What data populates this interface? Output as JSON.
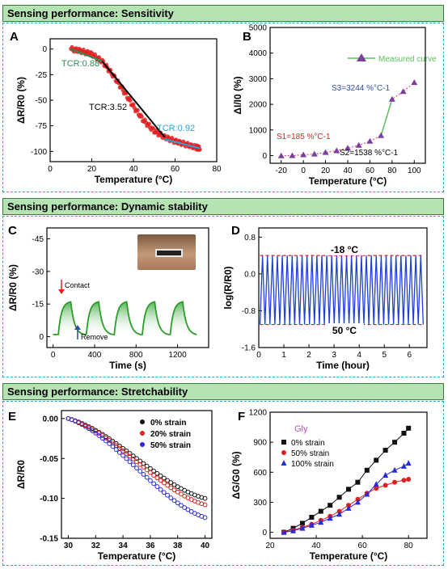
{
  "sections": [
    {
      "title": "Sensing performance: Sensitivity"
    },
    {
      "title": "Sensing performance: Dynamic stability"
    },
    {
      "title": "Sensing performance: Stretchability"
    }
  ],
  "colors": {
    "header_fill": "#b5e3b3",
    "header_border": "#3d7a3d",
    "section_border": "#2aa3d8"
  },
  "chart_data": [
    {
      "panel": "A",
      "type": "scatter",
      "xlabel": "Temperature (°C)",
      "ylabel": "ΔR/R0 (%)",
      "xlim": [
        0,
        80
      ],
      "ylim": [
        -110,
        10
      ],
      "xticks": [
        0,
        20,
        40,
        60,
        80
      ],
      "yticks": [
        0,
        -25,
        -50,
        -75,
        -100
      ],
      "series": [
        {
          "color": "#e02020",
          "points": [
            [
              10,
              0
            ],
            [
              15,
              -2
            ],
            [
              20,
              -5
            ],
            [
              25,
              -12
            ],
            [
              30,
              -25
            ],
            [
              35,
              -40
            ],
            [
              40,
              -56
            ],
            [
              45,
              -70
            ],
            [
              50,
              -80
            ],
            [
              55,
              -86
            ],
            [
              60,
              -90
            ],
            [
              65,
              -93
            ],
            [
              70,
              -96
            ],
            [
              72,
              -97
            ]
          ]
        }
      ],
      "annotations": [
        {
          "text": "TCR:0.88",
          "color": "#2e8b57"
        },
        {
          "text": "TCR:3.52",
          "color": "#000000"
        },
        {
          "text": "TCR:0.92",
          "color": "#2aa3d8"
        }
      ]
    },
    {
      "panel": "B",
      "type": "line",
      "xlabel": "Temperature (°C)",
      "ylabel": "ΔI/I0 (%)",
      "xlim": [
        -30,
        110
      ],
      "ylim": [
        -300,
        5000
      ],
      "xticks": [
        -20,
        0,
        20,
        40,
        60,
        80,
        100
      ],
      "yticks": [
        0,
        1000,
        2000,
        3000,
        4000,
        5000
      ],
      "series": [
        {
          "name": "Measured curve",
          "color": "#7a3e9e",
          "x": [
            -20,
            -10,
            0,
            10,
            20,
            30,
            40,
            50,
            60,
            70,
            80,
            90,
            100
          ],
          "y": [
            -10,
            0,
            30,
            60,
            120,
            190,
            290,
            400,
            560,
            780,
            2200,
            2500,
            2850
          ]
        }
      ],
      "annotations": [
        {
          "text": "S1=185 %°C-1",
          "color": "#e02020"
        },
        {
          "text": "S2=1538 %°C-1",
          "color": "#000000"
        },
        {
          "text": "S3=3244 %°C-1",
          "color": "#2e4fa8"
        }
      ]
    },
    {
      "panel": "C",
      "type": "line",
      "xlabel": "Time (s)",
      "ylabel": "ΔR/R0 (%)",
      "xlim": [
        -60,
        1500
      ],
      "ylim": [
        5,
        -50
      ],
      "xticks": [
        0,
        400,
        800,
        1200
      ],
      "yticks": [
        -45,
        -30,
        -15,
        0
      ],
      "cycles": [
        {
          "start": 50,
          "peak": -16
        },
        {
          "start": 320,
          "peak": -16
        },
        {
          "start": 590,
          "peak": -16
        },
        {
          "start": 860,
          "peak": -16
        },
        {
          "start": 1130,
          "peak": -16
        }
      ],
      "series": [
        {
          "color": "#2a9d2a"
        }
      ],
      "annotations": [
        {
          "text": "Contact",
          "color": "#e02020"
        },
        {
          "text": "Remove",
          "color": "#2e4fa8"
        }
      ]
    },
    {
      "panel": "D",
      "type": "line",
      "xlabel": "Time (hour)",
      "ylabel": "log(R/R0)",
      "xlim": [
        0,
        6.7
      ],
      "ylim": [
        -1.6,
        1.0
      ],
      "xticks": [
        0,
        1,
        2,
        3,
        4,
        5,
        6
      ],
      "yticks": [
        0.8,
        0.0,
        -0.8,
        -1.6
      ],
      "series": [
        {
          "color": "#1f3fd8",
          "high": 0.4,
          "low": -1.1,
          "cycles": 33
        },
        {
          "color": "#e02020",
          "high": 0.4,
          "low": -1.1
        }
      ],
      "annotations": [
        {
          "text": "-18 °C"
        },
        {
          "text": "50 °C"
        }
      ]
    },
    {
      "panel": "E",
      "type": "scatter",
      "xlabel": "Temperature (°C)",
      "ylabel": "ΔR/R0",
      "xlim": [
        29.5,
        40.5
      ],
      "ylim": [
        -0.15,
        0.01
      ],
      "xticks": [
        30,
        32,
        34,
        36,
        38,
        40
      ],
      "yticks": [
        0.0,
        -0.05,
        -0.1,
        -0.15
      ],
      "series": [
        {
          "name": "0% strain",
          "color": "#111111",
          "end": -0.1
        },
        {
          "name": "20% strain",
          "color": "#e02020",
          "end": -0.108
        },
        {
          "name": "50% strain",
          "color": "#2a2ad8",
          "end": -0.124
        }
      ]
    },
    {
      "panel": "F",
      "type": "line",
      "xlabel": "Temperature (°C)",
      "ylabel": "ΔG/G0 (%)",
      "xlim": [
        20,
        88
      ],
      "ylim": [
        -60,
        1200
      ],
      "xticks": [
        20,
        40,
        60,
        80
      ],
      "yticks": [
        0,
        300,
        600,
        900,
        1200
      ],
      "legend_title": "Gly",
      "legend_title_color": "#c050c0",
      "series": [
        {
          "name": "0% strain",
          "color": "#111111",
          "marker": "square",
          "x": [
            26,
            30,
            34,
            38,
            42,
            46,
            50,
            54,
            58,
            62,
            66,
            70,
            74,
            78,
            80
          ],
          "y": [
            0,
            40,
            90,
            150,
            210,
            270,
            350,
            430,
            500,
            620,
            720,
            820,
            900,
            990,
            1040
          ]
        },
        {
          "name": "50% strain",
          "color": "#e02020",
          "marker": "circle",
          "x": [
            26,
            30,
            34,
            38,
            42,
            46,
            50,
            54,
            58,
            62,
            66,
            70,
            74,
            78,
            80
          ],
          "y": [
            0,
            20,
            50,
            80,
            120,
            160,
            210,
            270,
            330,
            390,
            440,
            470,
            500,
            520,
            530
          ]
        },
        {
          "name": "100% strain",
          "color": "#2a2ad8",
          "marker": "triangle",
          "x": [
            26,
            30,
            34,
            38,
            42,
            46,
            50,
            54,
            58,
            62,
            66,
            70,
            74,
            78,
            80
          ],
          "y": [
            0,
            15,
            40,
            70,
            100,
            140,
            180,
            240,
            300,
            380,
            480,
            570,
            620,
            660,
            690
          ]
        }
      ]
    }
  ]
}
